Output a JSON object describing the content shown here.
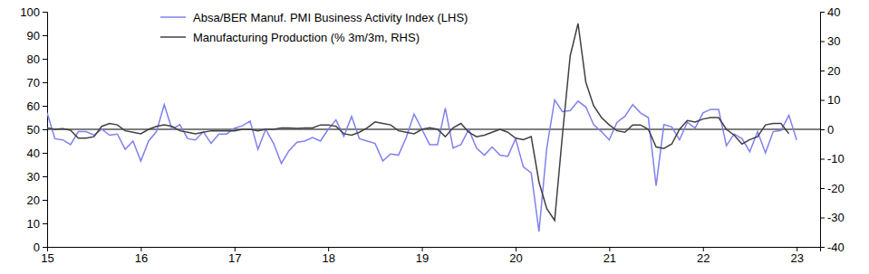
{
  "chart_data": {
    "type": "line",
    "x": [
      2015,
      2015.083,
      2015.167,
      2015.25,
      2015.333,
      2015.417,
      2015.5,
      2015.583,
      2015.667,
      2015.75,
      2015.833,
      2015.917,
      2016,
      2016.083,
      2016.167,
      2016.25,
      2016.333,
      2016.417,
      2016.5,
      2016.583,
      2016.667,
      2016.75,
      2016.833,
      2016.917,
      2017,
      2017.083,
      2017.167,
      2017.25,
      2017.333,
      2017.417,
      2017.5,
      2017.583,
      2017.667,
      2017.75,
      2017.833,
      2017.917,
      2018,
      2018.083,
      2018.167,
      2018.25,
      2018.333,
      2018.417,
      2018.5,
      2018.583,
      2018.667,
      2018.75,
      2018.833,
      2018.917,
      2019,
      2019.083,
      2019.167,
      2019.25,
      2019.333,
      2019.417,
      2019.5,
      2019.583,
      2019.667,
      2019.75,
      2019.833,
      2019.917,
      2020,
      2020.083,
      2020.167,
      2020.25,
      2020.333,
      2020.417,
      2020.5,
      2020.583,
      2020.667,
      2020.75,
      2020.833,
      2020.917,
      2021,
      2021.083,
      2021.167,
      2021.25,
      2021.333,
      2021.417,
      2021.5,
      2021.583,
      2021.667,
      2021.75,
      2021.833,
      2021.917,
      2022,
      2022.083,
      2022.167,
      2022.25,
      2022.333,
      2022.417,
      2022.5,
      2022.583,
      2022.667,
      2022.75,
      2022.833,
      2022.917,
      2023
    ],
    "series": [
      {
        "name": "Absa/BER Manuf. PMI Business Activity Index (LHS)",
        "color": "#8080ee",
        "values": [
          57,
          46,
          45.5,
          43.5,
          49,
          49,
          47.5,
          50,
          47.5,
          48,
          41.5,
          45,
          36.5,
          45,
          49,
          60.5,
          50,
          52,
          46,
          45.5,
          49,
          44,
          48,
          48,
          50.5,
          51.5,
          53.5,
          41.5,
          50,
          44,
          35.5,
          41,
          44.5,
          45,
          46.5,
          45,
          50,
          54,
          47,
          55.5,
          46,
          45,
          44,
          36.5,
          39.5,
          39,
          46.5,
          56.5,
          50,
          43.5,
          43.5,
          59,
          42,
          43.5,
          50,
          42,
          39,
          42.5,
          39,
          38.5,
          46,
          34,
          31.5,
          6.5,
          42,
          62.5,
          57.5,
          58,
          62,
          59.5,
          52,
          49,
          45.5,
          53,
          55.5,
          60.5,
          57,
          55,
          26,
          52,
          51,
          45.5,
          53,
          50.5,
          57,
          58.5,
          58.5,
          43,
          48,
          46,
          40.5,
          49,
          40,
          49,
          49.5,
          56,
          45.5
        ]
      },
      {
        "name": "Manufacturing Production (% 3m/3m, RHS)",
        "color": "#404040",
        "axis": "y2",
        "values": [
          0.5,
          0,
          0.2,
          -0.3,
          -3,
          -3,
          -2.5,
          1,
          2,
          1.5,
          -0.5,
          -1,
          -1.5,
          0,
          1,
          1.5,
          1,
          -0.5,
          -1,
          -1.5,
          -1,
          -0.5,
          -0.5,
          -0.5,
          -0.5,
          0,
          0,
          -0.5,
          0,
          0,
          0.5,
          0.5,
          0.3,
          0.5,
          0.5,
          1.5,
          1.5,
          1,
          -1.5,
          -2,
          -1,
          0.5,
          2.5,
          2,
          1.5,
          -0.5,
          -1,
          -1.5,
          0,
          0.5,
          0,
          -2.5,
          0.5,
          2,
          -1,
          -2.5,
          -2,
          -1,
          0,
          -1,
          -3,
          -3.5,
          -2.5,
          -18,
          -27,
          -31,
          -2,
          25,
          36,
          16,
          8,
          4,
          1.5,
          -0.5,
          -1,
          1.5,
          1.5,
          0,
          -6,
          -6.5,
          -5,
          0,
          3,
          2.5,
          3.5,
          4,
          4,
          0,
          -2,
          -5,
          -3.5,
          -2.5,
          1.5,
          2,
          2,
          -1.5,
          null
        ]
      }
    ],
    "xlim": [
      2015,
      2023.25
    ],
    "xticks": [
      {
        "value": 2015,
        "label": "15"
      },
      {
        "value": 2016,
        "label": "16"
      },
      {
        "value": 2017,
        "label": "17"
      },
      {
        "value": 2018,
        "label": "18"
      },
      {
        "value": 2019,
        "label": "19"
      },
      {
        "value": 2020,
        "label": "20"
      },
      {
        "value": 2021,
        "label": "21"
      },
      {
        "value": 2022,
        "label": "22"
      },
      {
        "value": 2023,
        "label": "23"
      }
    ],
    "ylim": [
      0,
      100
    ],
    "yticks": [
      0,
      10,
      20,
      30,
      40,
      50,
      60,
      70,
      80,
      90,
      100
    ],
    "y2lim": [
      -40,
      40
    ],
    "y2ticks": [
      -40,
      -30,
      -20,
      -10,
      0,
      10,
      20,
      30,
      40
    ],
    "grid": false,
    "legend": "top"
  }
}
